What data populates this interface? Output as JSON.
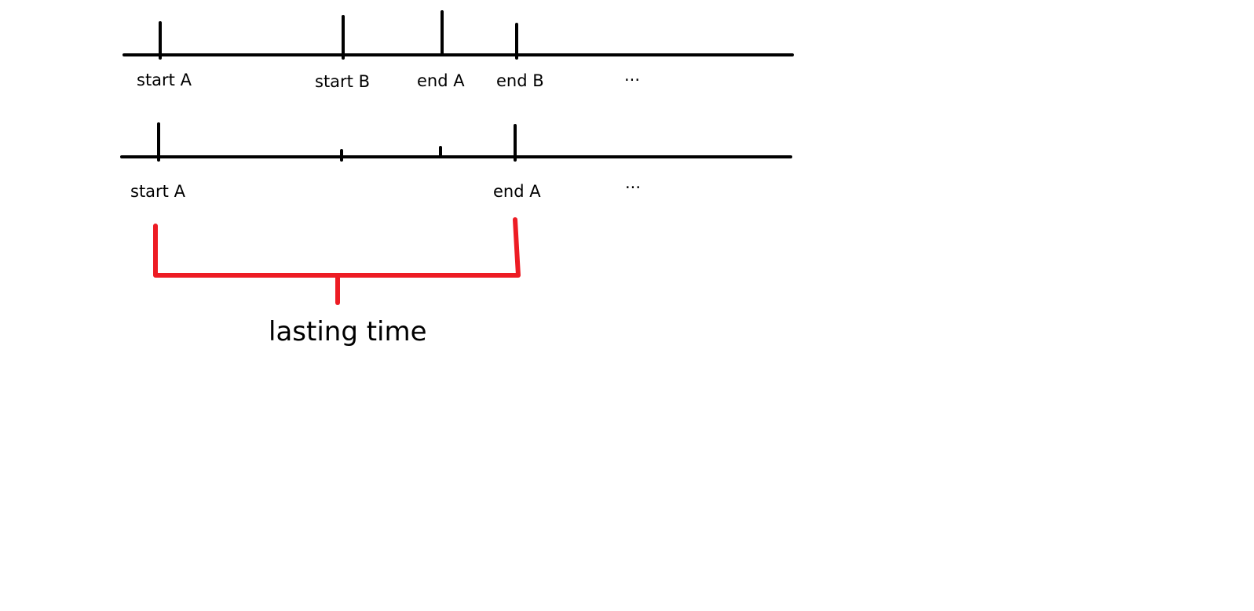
{
  "timeline_top": {
    "labels": [
      "start A",
      "start B",
      "end A",
      "end B"
    ],
    "ellipsis": "···"
  },
  "timeline_bottom": {
    "labels": [
      "start A",
      "end A"
    ],
    "ellipsis": "···"
  },
  "bracket": {
    "label": "lasting time",
    "color": "#ed1c24"
  },
  "colors": {
    "line": "#000000",
    "background": "#ffffff"
  }
}
